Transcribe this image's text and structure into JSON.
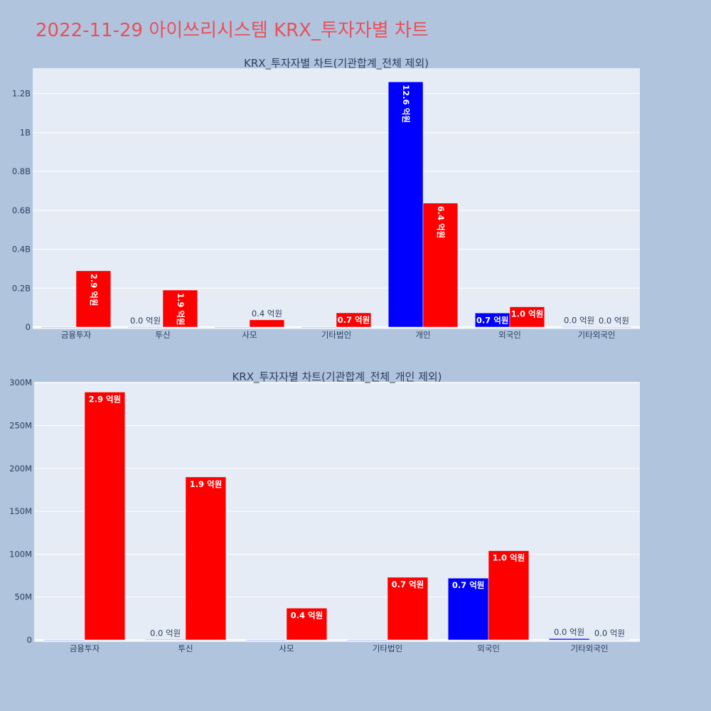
{
  "page_title": "2022-11-29 아이쓰리시스템 KRX_투자자별 차트",
  "colors": {
    "background": "#b0c4de",
    "plot_bg": "#e5ecf6",
    "title": "#e8505b",
    "buy": "#0000ff",
    "sell": "#ff0000",
    "text": "#2a3f5f"
  },
  "chart_data": [
    {
      "type": "bar",
      "title": "KRX_투자자별 차트(기관합계_전체 제외)",
      "categories": [
        "금융투자",
        "투신",
        "사모",
        "기타법인",
        "개인",
        "외국인",
        "기타외국인"
      ],
      "yticks": [
        "0",
        "0.2B",
        "0.4B",
        "0.6B",
        "0.8B",
        "1B",
        "1.2B"
      ],
      "ylim": [
        0,
        1330000000
      ],
      "grid": true,
      "series": [
        {
          "color": "#0000ff",
          "values": [
            0,
            500000,
            0,
            0,
            1260000000,
            72000000,
            1500000
          ],
          "labels": [
            "",
            "0.0 억원",
            "",
            "",
            "12.6 억원",
            "0.7 억원",
            "0.0 억원"
          ],
          "label_pos": [
            "",
            "outside",
            "",
            "",
            "inside-vertical",
            "inside",
            "outside"
          ]
        },
        {
          "color": "#ff0000",
          "values": [
            289000000,
            190000000,
            37000000,
            73000000,
            637000000,
            104000000,
            300000
          ],
          "labels": [
            "2.9 억원",
            "1.9 억원",
            "0.4 억원",
            "0.7 억원",
            "6.4 억원",
            "1.0 억원",
            "0.0 억원"
          ],
          "label_pos": [
            "inside-vertical",
            "inside-vertical",
            "outside",
            "inside",
            "inside-vertical",
            "inside",
            "outside"
          ]
        }
      ]
    },
    {
      "type": "bar",
      "title": "KRX_투자자별 차트(기관합계_전체_개인 제외)",
      "categories": [
        "금융투자",
        "투신",
        "사모",
        "기타법인",
        "외국인",
        "기타외국인"
      ],
      "yticks": [
        "0",
        "50M",
        "100M",
        "150M",
        "200M",
        "250M",
        "300M"
      ],
      "ylim": [
        0,
        301000000
      ],
      "grid": true,
      "series": [
        {
          "color": "#0000ff",
          "values": [
            0,
            500000,
            0,
            0,
            72000000,
            1500000
          ],
          "labels": [
            "",
            "0.0 억원",
            "",
            "",
            "0.7 억원",
            "0.0 억원"
          ],
          "label_pos": [
            "",
            "outside",
            "",
            "",
            "inside",
            "outside"
          ]
        },
        {
          "color": "#ff0000",
          "values": [
            289000000,
            190000000,
            37000000,
            73000000,
            104000000,
            300000
          ],
          "labels": [
            "2.9 억원",
            "1.9 억원",
            "0.4 억원",
            "0.7 억원",
            "1.0 억원",
            "0.0 억원"
          ],
          "label_pos": [
            "inside",
            "inside",
            "inside",
            "inside",
            "inside",
            "outside"
          ]
        }
      ]
    }
  ]
}
